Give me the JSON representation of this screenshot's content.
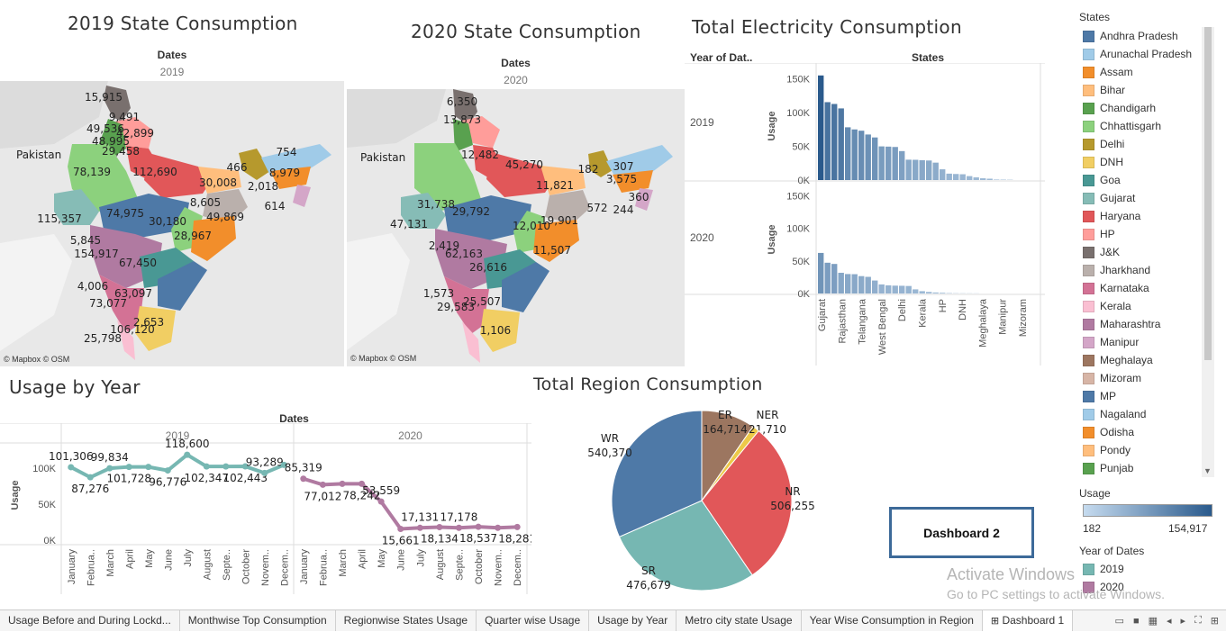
{
  "maps": {
    "m2019": {
      "title": "2019 State Consumption",
      "dim_label": "Dates",
      "year": "2019",
      "credit": "© Mapbox © OSM",
      "country_label": "Pakistan",
      "labels": [
        "15,915",
        "9,491",
        "49,536",
        "48,995",
        "42,899",
        "29,458",
        "112,690",
        "78,139",
        "466",
        "754",
        "8,979",
        "30,008",
        "2,018",
        "8,605",
        "614",
        "115,357",
        "74,975",
        "30,180",
        "49,869",
        "5,845",
        "28,967",
        "154,917",
        "67,450",
        "4,006",
        "63,097",
        "73,077",
        "2,653",
        "106,120",
        "25,798"
      ]
    },
    "m2020": {
      "title": "2020 State Consumption",
      "dim_label": "Dates",
      "year": "2020",
      "credit": "© Mapbox © OSM",
      "country_label": "Pakistan",
      "labels": [
        "6,350",
        "13,873",
        "12,482",
        "45,270",
        "31,738",
        "182",
        "307",
        "11,821",
        "3,575",
        "360",
        "47,131",
        "29,792",
        "12,010",
        "19,901",
        "572",
        "244",
        "2,419",
        "62,163",
        "11,507",
        "26,616",
        "1,573",
        "25,507",
        "29,583",
        "1,106"
      ]
    }
  },
  "bar": {
    "title": "Total Electricity Consumption",
    "col_header_left": "Year of Dat..",
    "col_header_right": "States",
    "ylabel": "Usage",
    "rows": [
      "2019",
      "2020"
    ]
  },
  "legend": {
    "states_title": "States",
    "states": [
      {
        "name": "Andhra Pradesh",
        "color": "#4e79a7"
      },
      {
        "name": "Arunachal Pradesh",
        "color": "#a0cbe8"
      },
      {
        "name": "Assam",
        "color": "#f28e2b"
      },
      {
        "name": "Bihar",
        "color": "#ffbe7d"
      },
      {
        "name": "Chandigarh",
        "color": "#59a14f"
      },
      {
        "name": "Chhattisgarh",
        "color": "#8cd17d"
      },
      {
        "name": "Delhi",
        "color": "#b6992d"
      },
      {
        "name": "DNH",
        "color": "#f1ce63"
      },
      {
        "name": "Goa",
        "color": "#499894"
      },
      {
        "name": "Gujarat",
        "color": "#86bcb6"
      },
      {
        "name": "Haryana",
        "color": "#e15759"
      },
      {
        "name": "HP",
        "color": "#ff9d9a"
      },
      {
        "name": "J&K",
        "color": "#79706e"
      },
      {
        "name": "Jharkhand",
        "color": "#bab0ac"
      },
      {
        "name": "Karnataka",
        "color": "#d37295"
      },
      {
        "name": "Kerala",
        "color": "#fabfd2"
      },
      {
        "name": "Maharashtra",
        "color": "#b07aa1"
      },
      {
        "name": "Manipur",
        "color": "#d4a6c8"
      },
      {
        "name": "Meghalaya",
        "color": "#9d7660"
      },
      {
        "name": "Mizoram",
        "color": "#d7b5a6"
      },
      {
        "name": "MP",
        "color": "#4e79a7"
      },
      {
        "name": "Nagaland",
        "color": "#a0cbe8"
      },
      {
        "name": "Odisha",
        "color": "#f28e2b"
      },
      {
        "name": "Pondy",
        "color": "#ffbe7d"
      },
      {
        "name": "Punjab",
        "color": "#59a14f"
      }
    ],
    "usage_title": "Usage",
    "usage_min": "182",
    "usage_max": "154,917",
    "year_title": "Year of Dates",
    "years": [
      {
        "name": "2019",
        "color": "#76b7b2"
      },
      {
        "name": "2020",
        "color": "#b07aa1"
      }
    ]
  },
  "line": {
    "title": "Usage by Year",
    "dim_label": "Dates"
  },
  "pie": {
    "title": "Total Region Consumption"
  },
  "dashboard_button": "Dashboard 2",
  "watermark": {
    "line1": "Activate Windows",
    "line2": "Go to PC settings to activate Windows."
  },
  "tabs": [
    "Usage Before and During Lockd...",
    "Monthwise Top Consumption",
    "Regionwise States Usage",
    "Quarter wise Usage",
    "Usage by Year",
    "Metro city state Usage",
    "Year Wise Consumption in Region",
    "Dashboard 1"
  ],
  "chart_data": [
    {
      "type": "bar",
      "title": "Total Electricity Consumption",
      "ylabel": "Usage",
      "xlabel": "States",
      "ylim": [
        0,
        160000
      ],
      "yticks": [
        "0K",
        "50K",
        "100K",
        "150K"
      ],
      "categories_shown": [
        "Gujarat",
        "Rajasthan",
        "Telangana",
        "West Bengal",
        "Delhi",
        "Kerala",
        "HP",
        "DNH",
        "Meghalaya",
        "Manipur",
        "Mizoram"
      ],
      "series": [
        {
          "name": "2019",
          "values": [
            154917,
            115357,
            112690,
            106120,
            78139,
            74975,
            73077,
            67450,
            63097,
            49869,
            49536,
            48995,
            42899,
            30180,
            30008,
            29458,
            28967,
            25798,
            15915,
            9491,
            8979,
            8605,
            5845,
            4006,
            2653,
            2018,
            754,
            614,
            466
          ]
        },
        {
          "name": "2020",
          "values": [
            62163,
            47131,
            45270,
            31738,
            29792,
            29583,
            26616,
            25507,
            19901,
            13873,
            12482,
            12010,
            11821,
            11507,
            6350,
            3575,
            2419,
            1573,
            1106,
            572,
            360,
            307,
            244,
            182
          ]
        }
      ]
    },
    {
      "type": "line",
      "title": "Usage by Year",
      "ylabel": "Usage",
      "x": [
        "January",
        "Februa..",
        "March",
        "April",
        "May",
        "June",
        "July",
        "August",
        "Septe..",
        "October",
        "Novem..",
        "Decem.."
      ],
      "yticks": [
        "0K",
        "50K",
        "100K"
      ],
      "ylim": [
        0,
        125000
      ],
      "series": [
        {
          "name": "2019",
          "values": [
            101306,
            87276,
            99834,
            101728,
            101728,
            96776,
            118600,
            102347,
            102347,
            102443,
            93289,
            104500
          ],
          "labels": [
            "101,306",
            "87,276",
            "99,834",
            "101,728",
            "",
            "96,776",
            "118,600",
            "102,347",
            "",
            "102,443",
            "93,289",
            ""
          ]
        },
        {
          "name": "2020",
          "values": [
            85319,
            77012,
            78242,
            78242,
            53559,
            15661,
            17131,
            18134,
            17178,
            18537,
            17178,
            18281
          ],
          "labels": [
            "85,319",
            "77,012",
            "",
            "78,242",
            "53,559",
            "15,661",
            "17,131",
            "18,134",
            "17,178",
            "18,537",
            "",
            "18,281"
          ]
        }
      ]
    },
    {
      "type": "pie",
      "title": "Total Region Consumption",
      "slices": [
        {
          "name": "ER",
          "value": 164714,
          "label": "164,714",
          "color": "#9c7660"
        },
        {
          "name": "NER",
          "value": 21710,
          "label": "21,710",
          "color": "#edc948"
        },
        {
          "name": "NR",
          "value": 506255,
          "label": "506,255",
          "color": "#e15759"
        },
        {
          "name": "SR",
          "value": 476679,
          "label": "476,679",
          "color": "#76b7b2"
        },
        {
          "name": "WR",
          "value": 540370,
          "label": "540,370",
          "color": "#4e79a7"
        }
      ]
    }
  ]
}
